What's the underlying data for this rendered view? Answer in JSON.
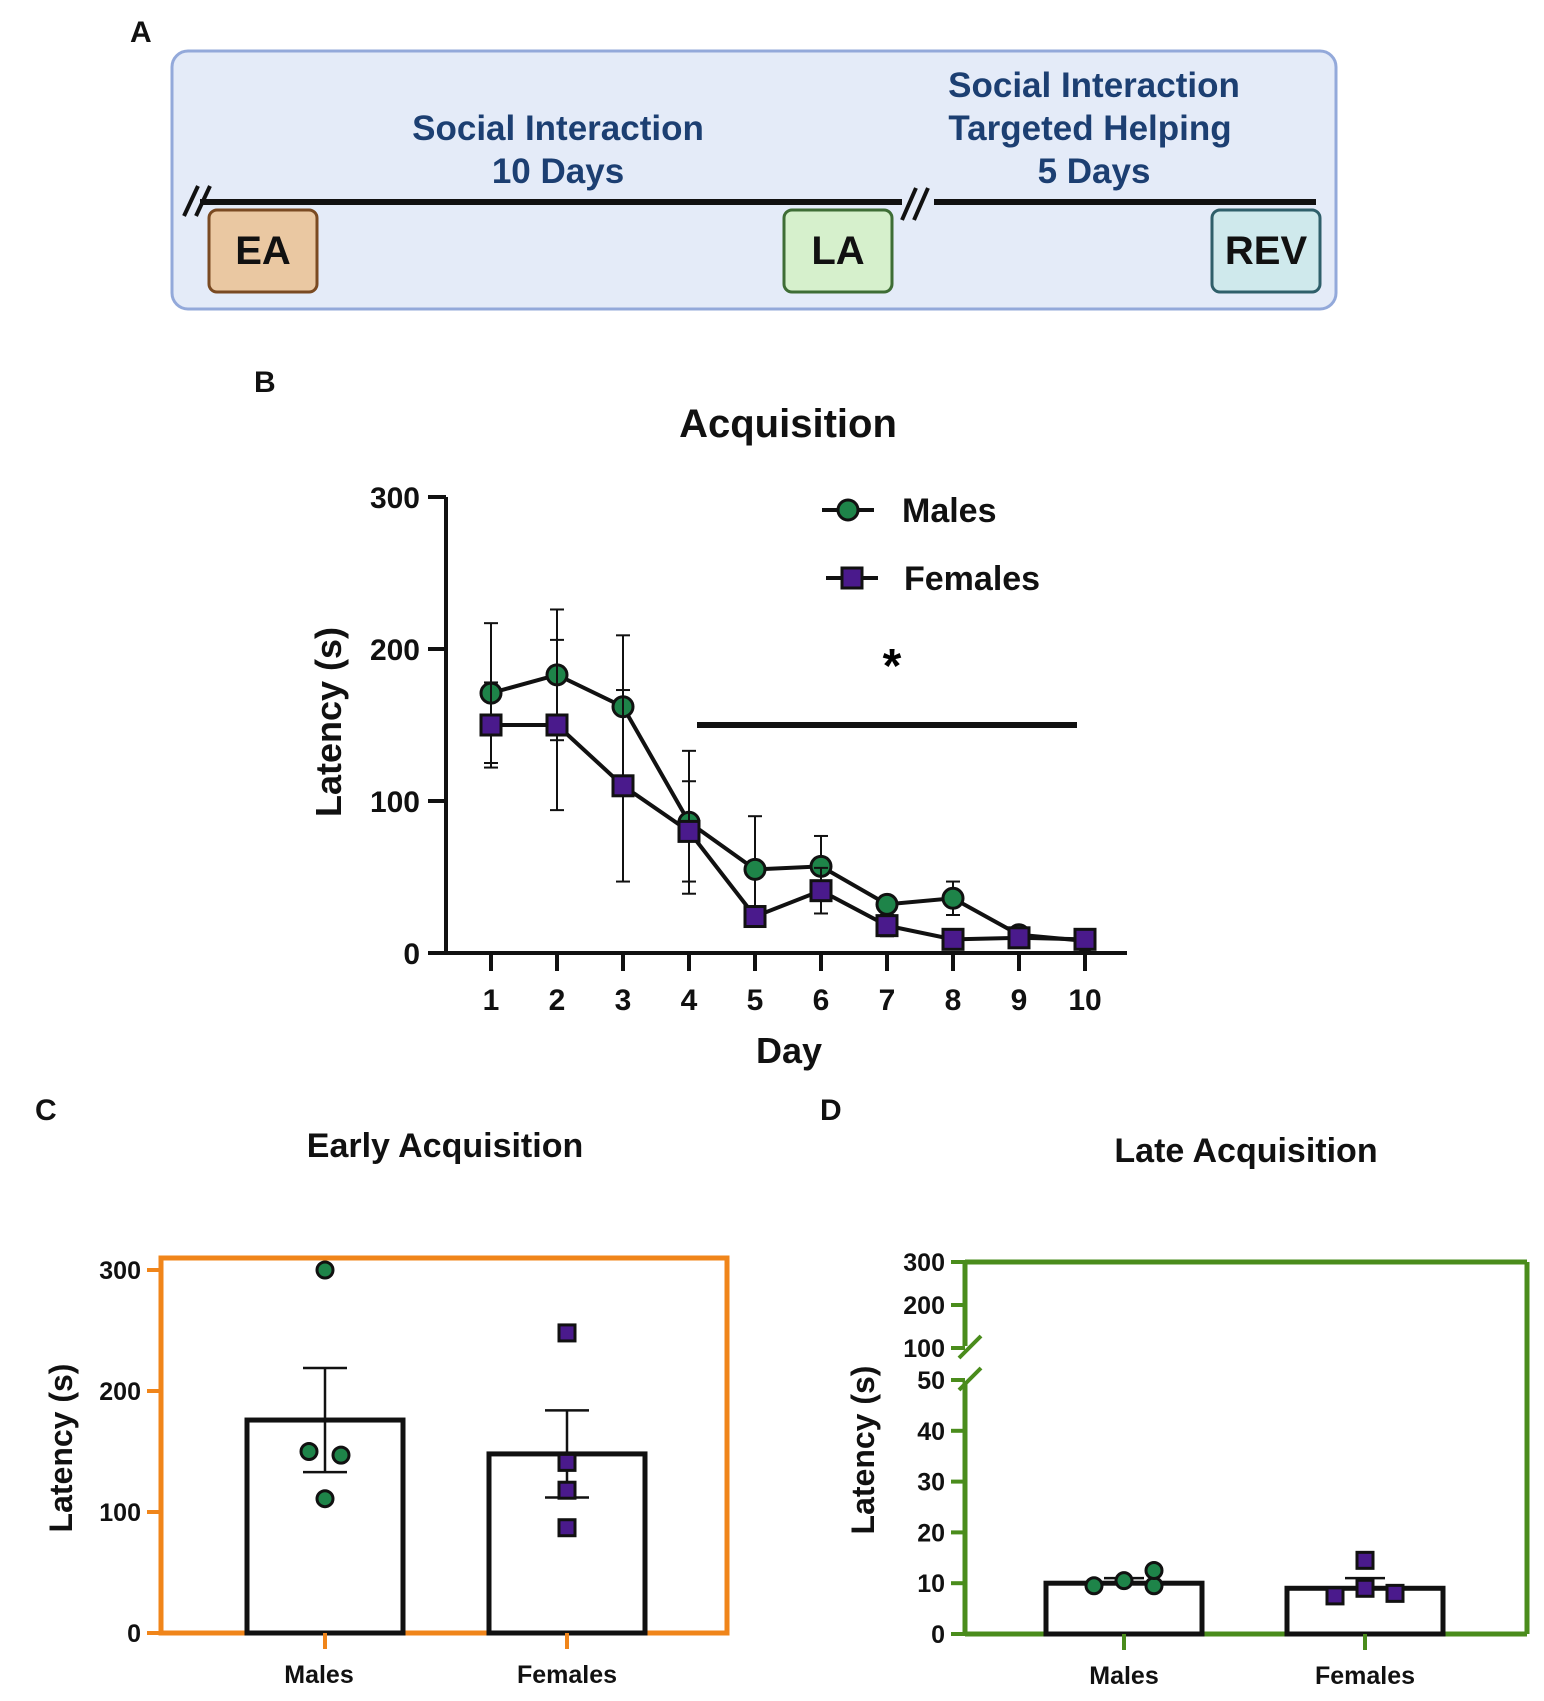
{
  "panels": {
    "a": "A",
    "b": "B",
    "c": "C",
    "d": "D"
  },
  "timeline": {
    "phase1_title": "Social Interaction",
    "phase1_duration": "10 Days",
    "phase2_line1": "Social Interaction",
    "phase2_line2": "Targeted Helping",
    "phase2_duration": "5 Days",
    "box_ea": "EA",
    "box_la": "LA",
    "box_rev": "REV",
    "colors": {
      "panel_bg": "#e4ebf8",
      "panel_border": "#93a9da",
      "text": "#1c3f72",
      "ea_fill": "#eac8a2",
      "ea_border": "#7a4a22",
      "la_fill": "#d6f0cc",
      "la_border": "#3e6d35",
      "rev_fill": "#cfe9ec",
      "rev_border": "#2f5f6a"
    }
  },
  "chart_data": [
    {
      "id": "acquisition",
      "type": "line",
      "title": "Acquisition",
      "xlabel": "Day",
      "ylabel": "Latency (s)",
      "x": [
        1,
        2,
        3,
        4,
        5,
        6,
        7,
        8,
        9,
        10
      ],
      "x_tick_labels": [
        "1",
        "2",
        "3",
        "4",
        "5",
        "6",
        "7",
        "8",
        "9",
        "10"
      ],
      "ylim": [
        0,
        300
      ],
      "y_ticks": [
        0,
        100,
        200,
        300
      ],
      "y_tick_labels": [
        "0",
        "100",
        "200",
        "300"
      ],
      "legend_position": "top-right",
      "series": [
        {
          "name": "Males",
          "marker": "circle",
          "color": "#1e8449",
          "values": [
            171,
            183,
            162,
            86,
            55,
            57,
            32,
            36,
            12,
            8
          ],
          "error": [
            46,
            43,
            47,
            47,
            35,
            20,
            5,
            11,
            2,
            2
          ]
        },
        {
          "name": "Females",
          "marker": "square",
          "color": "#4a1a8c",
          "values": [
            150,
            150,
            110,
            80,
            24,
            41,
            18,
            9,
            10,
            9
          ],
          "error": [
            28,
            56,
            63,
            33,
            5,
            15,
            7,
            2,
            2,
            2
          ]
        }
      ],
      "significance": {
        "label": "*",
        "from_day": 4,
        "to_day": 10,
        "y": 150
      }
    },
    {
      "id": "early-acquisition",
      "type": "bar",
      "title": "Early Acquisition",
      "xlabel": "",
      "ylabel": "Latency (s)",
      "categories": [
        "Males",
        "Females"
      ],
      "values": [
        176,
        148
      ],
      "error": [
        43,
        36
      ],
      "ylim": [
        0,
        300
      ],
      "y_ticks": [
        0,
        100,
        200,
        300
      ],
      "y_tick_labels": [
        "0",
        "100",
        "200",
        "300"
      ],
      "frame_color": "#f0851a",
      "points": [
        {
          "group": "Males",
          "marker": "circle",
          "color": "#1e8449",
          "values": [
            300,
            150,
            147,
            111
          ]
        },
        {
          "group": "Females",
          "marker": "square",
          "color": "#4a1a8c",
          "values": [
            248,
            141,
            118,
            87
          ]
        }
      ]
    },
    {
      "id": "late-acquisition",
      "type": "bar",
      "title": "Late Acquisition",
      "xlabel": "",
      "ylabel": "Latency (s)",
      "categories": [
        "Males",
        "Females"
      ],
      "values": [
        10,
        9
      ],
      "error": [
        1,
        2
      ],
      "broken_axis": {
        "lower_range": [
          0,
          50
        ],
        "upper_range": [
          100,
          300
        ],
        "lower_ticks": [
          0,
          10,
          20,
          30,
          40,
          50
        ],
        "lower_tick_labels": [
          "0",
          "10",
          "20",
          "30",
          "40",
          "50"
        ],
        "upper_ticks": [
          100,
          200,
          300
        ],
        "upper_tick_labels": [
          "100",
          "200",
          "300"
        ]
      },
      "frame_color": "#4a8c1c",
      "points": [
        {
          "group": "Males",
          "marker": "circle",
          "color": "#1e8449",
          "values": [
            9.5,
            10.5,
            9.5,
            12.5
          ]
        },
        {
          "group": "Females",
          "marker": "square",
          "color": "#4a1a8c",
          "values": [
            7.5,
            14.5,
            9,
            8
          ]
        }
      ]
    }
  ]
}
